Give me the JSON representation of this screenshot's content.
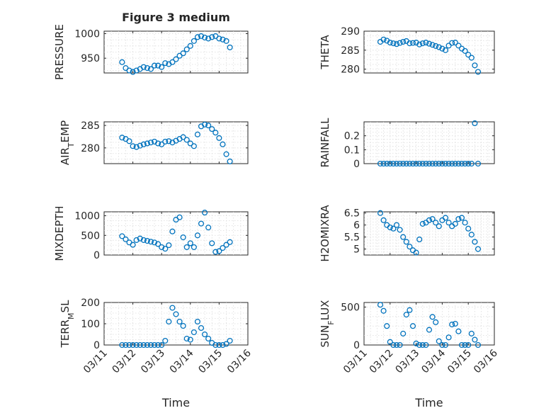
{
  "figure": {
    "title": "Figure 3 medium",
    "xlabel": "Time"
  },
  "chart_data": [
    {
      "type": "scatter",
      "ylabel": "PRESSURE",
      "ylim": [
        920,
        1005
      ],
      "yticks": [
        950,
        1000
      ],
      "ytick_labels": [
        "950",
        "1000"
      ],
      "x": [
        "03/11 15:00",
        "03/11 18:00",
        "03/11 21:00",
        "03/12 00:00",
        "03/12 03:00",
        "03/12 06:00",
        "03/12 09:00",
        "03/12 12:00",
        "03/12 15:00",
        "03/12 18:00",
        "03/12 21:00",
        "03/13 00:00",
        "03/13 03:00",
        "03/13 06:00",
        "03/13 09:00",
        "03/13 12:00",
        "03/13 15:00",
        "03/13 18:00",
        "03/13 21:00",
        "03/14 00:00",
        "03/14 03:00",
        "03/14 06:00",
        "03/14 09:00",
        "03/14 12:00",
        "03/14 15:00",
        "03/14 18:00",
        "03/14 21:00",
        "03/15 00:00",
        "03/15 03:00",
        "03/15 06:00",
        "03/15 09:00"
      ],
      "values": [
        942,
        930,
        925,
        922,
        925,
        928,
        932,
        930,
        928,
        935,
        935,
        932,
        940,
        938,
        942,
        948,
        955,
        960,
        968,
        975,
        985,
        993,
        995,
        992,
        990,
        993,
        995,
        990,
        988,
        985,
        972
      ]
    },
    {
      "type": "scatter",
      "ylabel": "THETA",
      "ylim": [
        279,
        290
      ],
      "yticks": [
        280,
        285,
        290
      ],
      "ytick_labels": [
        "280",
        "285",
        "290"
      ],
      "x": [
        "03/11 15:00",
        "03/11 18:00",
        "03/11 21:00",
        "03/12 00:00",
        "03/12 03:00",
        "03/12 06:00",
        "03/12 09:00",
        "03/12 12:00",
        "03/12 15:00",
        "03/12 18:00",
        "03/12 21:00",
        "03/13 00:00",
        "03/13 03:00",
        "03/13 06:00",
        "03/13 09:00",
        "03/13 12:00",
        "03/13 15:00",
        "03/13 18:00",
        "03/13 21:00",
        "03/14 00:00",
        "03/14 03:00",
        "03/14 06:00",
        "03/14 09:00",
        "03/14 12:00",
        "03/14 15:00",
        "03/14 18:00",
        "03/14 21:00",
        "03/15 00:00",
        "03/15 03:00",
        "03/15 06:00",
        "03/15 09:00"
      ],
      "values": [
        287.2,
        287.8,
        287.5,
        287.0,
        286.8,
        286.6,
        286.9,
        287.2,
        287.4,
        286.8,
        286.9,
        287.0,
        286.5,
        286.8,
        287.0,
        286.7,
        286.4,
        286.1,
        285.8,
        285.4,
        285.0,
        286.2,
        286.9,
        287.0,
        286.2,
        285.4,
        284.8,
        283.8,
        283.0,
        281.0,
        279.3
      ]
    },
    {
      "type": "scatter",
      "ylabel": "AIR_TEMP",
      "ylim": [
        276.5,
        285.8
      ],
      "yticks": [
        280,
        285
      ],
      "ytick_labels": [
        "280",
        "285"
      ],
      "x": [
        "03/11 15:00",
        "03/11 18:00",
        "03/11 21:00",
        "03/12 00:00",
        "03/12 03:00",
        "03/12 06:00",
        "03/12 09:00",
        "03/12 12:00",
        "03/12 15:00",
        "03/12 18:00",
        "03/12 21:00",
        "03/13 00:00",
        "03/13 03:00",
        "03/13 06:00",
        "03/13 09:00",
        "03/13 12:00",
        "03/13 15:00",
        "03/13 18:00",
        "03/13 21:00",
        "03/14 00:00",
        "03/14 03:00",
        "03/14 06:00",
        "03/14 09:00",
        "03/14 12:00",
        "03/14 15:00",
        "03/14 18:00",
        "03/14 21:00",
        "03/15 00:00",
        "03/15 03:00",
        "03/15 06:00",
        "03/15 09:00"
      ],
      "values": [
        282.3,
        282.0,
        281.5,
        280.4,
        280.2,
        280.5,
        280.8,
        281.0,
        281.2,
        281.4,
        281.0,
        280.8,
        281.4,
        281.5,
        281.2,
        281.6,
        282.0,
        282.4,
        281.8,
        281.0,
        280.4,
        283.0,
        284.8,
        285.2,
        285.0,
        284.2,
        283.4,
        282.2,
        280.8,
        278.6,
        277.0
      ]
    },
    {
      "type": "scatter",
      "ylabel": "RAINFALL",
      "ylim": [
        0,
        0.3
      ],
      "yticks": [
        0,
        0.1,
        0.2
      ],
      "ytick_labels": [
        "0",
        "0.1",
        "0.2"
      ],
      "x": [
        "03/11 15:00",
        "03/11 18:00",
        "03/11 21:00",
        "03/12 00:00",
        "03/12 03:00",
        "03/12 06:00",
        "03/12 09:00",
        "03/12 12:00",
        "03/12 15:00",
        "03/12 18:00",
        "03/12 21:00",
        "03/13 00:00",
        "03/13 03:00",
        "03/13 06:00",
        "03/13 09:00",
        "03/13 12:00",
        "03/13 15:00",
        "03/13 18:00",
        "03/13 21:00",
        "03/14 00:00",
        "03/14 03:00",
        "03/14 06:00",
        "03/14 09:00",
        "03/14 12:00",
        "03/14 15:00",
        "03/14 18:00",
        "03/14 21:00",
        "03/15 00:00",
        "03/15 03:00",
        "03/15 06:00",
        "03/15 09:00"
      ],
      "values": [
        0,
        0,
        0,
        0,
        0,
        0,
        0,
        0,
        0,
        0,
        0,
        0,
        0,
        0,
        0,
        0,
        0,
        0,
        0,
        0,
        0,
        0,
        0,
        0,
        0,
        0,
        0,
        0,
        0,
        0.29,
        0
      ]
    },
    {
      "type": "scatter",
      "ylabel": "MIXDEPTH",
      "ylim": [
        0,
        1100
      ],
      "yticks": [
        0,
        500,
        1000
      ],
      "ytick_labels": [
        "0",
        "500",
        "1000"
      ],
      "x": [
        "03/11 15:00",
        "03/11 18:00",
        "03/11 21:00",
        "03/12 00:00",
        "03/12 03:00",
        "03/12 06:00",
        "03/12 09:00",
        "03/12 12:00",
        "03/12 15:00",
        "03/12 18:00",
        "03/12 21:00",
        "03/13 00:00",
        "03/13 03:00",
        "03/13 06:00",
        "03/13 09:00",
        "03/13 12:00",
        "03/13 15:00",
        "03/13 18:00",
        "03/13 21:00",
        "03/14 00:00",
        "03/14 03:00",
        "03/14 06:00",
        "03/14 09:00",
        "03/14 12:00",
        "03/14 15:00",
        "03/14 18:00",
        "03/14 21:00",
        "03/15 00:00",
        "03/15 03:00",
        "03/15 06:00",
        "03/15 09:00"
      ],
      "values": [
        480,
        400,
        320,
        260,
        380,
        420,
        380,
        360,
        340,
        320,
        280,
        200,
        160,
        250,
        600,
        900,
        960,
        450,
        200,
        300,
        200,
        500,
        800,
        1080,
        700,
        300,
        80,
        100,
        180,
        260,
        330
      ]
    },
    {
      "type": "scatter",
      "ylabel": "H2OMIXRA",
      "ylim": [
        4.75,
        6.55
      ],
      "yticks": [
        5,
        5.5,
        6,
        6.5
      ],
      "ytick_labels": [
        "5",
        "5.5",
        "6",
        "6.5"
      ],
      "x": [
        "03/11 15:00",
        "03/11 18:00",
        "03/11 21:00",
        "03/12 00:00",
        "03/12 03:00",
        "03/12 06:00",
        "03/12 09:00",
        "03/12 12:00",
        "03/12 15:00",
        "03/12 18:00",
        "03/12 21:00",
        "03/13 00:00",
        "03/13 03:00",
        "03/13 06:00",
        "03/13 09:00",
        "03/13 12:00",
        "03/13 15:00",
        "03/13 18:00",
        "03/13 21:00",
        "03/14 00:00",
        "03/14 03:00",
        "03/14 06:00",
        "03/14 09:00",
        "03/14 12:00",
        "03/14 15:00",
        "03/14 18:00",
        "03/14 21:00",
        "03/15 00:00",
        "03/15 03:00",
        "03/15 06:00",
        "03/15 09:00"
      ],
      "values": [
        6.5,
        6.2,
        6.0,
        5.9,
        5.85,
        6.0,
        5.8,
        5.5,
        5.3,
        5.1,
        4.95,
        4.85,
        5.4,
        6.05,
        6.1,
        6.2,
        6.25,
        6.1,
        5.95,
        6.2,
        6.3,
        6.1,
        5.95,
        6.05,
        6.25,
        6.3,
        6.1,
        5.85,
        5.6,
        5.3,
        5.0
      ]
    },
    {
      "type": "scatter",
      "ylabel": "TERR_MSL",
      "ylim": [
        0,
        200
      ],
      "yticks": [
        0,
        100,
        200
      ],
      "ytick_labels": [
        "0",
        "100",
        "200"
      ],
      "x": [
        "03/11 15:00",
        "03/11 18:00",
        "03/11 21:00",
        "03/12 00:00",
        "03/12 03:00",
        "03/12 06:00",
        "03/12 09:00",
        "03/12 12:00",
        "03/12 15:00",
        "03/12 18:00",
        "03/12 21:00",
        "03/13 00:00",
        "03/13 03:00",
        "03/13 06:00",
        "03/13 09:00",
        "03/13 12:00",
        "03/13 15:00",
        "03/13 18:00",
        "03/13 21:00",
        "03/14 00:00",
        "03/14 03:00",
        "03/14 06:00",
        "03/14 09:00",
        "03/14 12:00",
        "03/14 15:00",
        "03/14 18:00",
        "03/14 21:00",
        "03/15 00:00",
        "03/15 03:00",
        "03/15 06:00",
        "03/15 09:00"
      ],
      "values": [
        0,
        0,
        0,
        0,
        0,
        0,
        0,
        0,
        0,
        0,
        0,
        0,
        20,
        110,
        175,
        145,
        110,
        90,
        30,
        25,
        60,
        110,
        80,
        50,
        30,
        10,
        0,
        0,
        0,
        5,
        20
      ]
    },
    {
      "type": "scatter",
      "ylabel": "SUN_FLUX",
      "ylim": [
        0,
        560
      ],
      "yticks": [
        0,
        500
      ],
      "ytick_labels": [
        "0",
        "500"
      ],
      "x": [
        "03/11 15:00",
        "03/11 18:00",
        "03/11 21:00",
        "03/12 00:00",
        "03/12 03:00",
        "03/12 06:00",
        "03/12 09:00",
        "03/12 12:00",
        "03/12 15:00",
        "03/12 18:00",
        "03/12 21:00",
        "03/13 00:00",
        "03/13 03:00",
        "03/13 06:00",
        "03/13 09:00",
        "03/13 12:00",
        "03/13 15:00",
        "03/13 18:00",
        "03/13 21:00",
        "03/14 00:00",
        "03/14 03:00",
        "03/14 06:00",
        "03/14 09:00",
        "03/14 12:00",
        "03/14 15:00",
        "03/14 18:00",
        "03/14 21:00",
        "03/15 00:00",
        "03/15 03:00",
        "03/15 06:00",
        "03/15 09:00"
      ],
      "values": [
        530,
        450,
        250,
        40,
        0,
        0,
        0,
        150,
        400,
        460,
        250,
        20,
        0,
        0,
        0,
        200,
        370,
        300,
        50,
        0,
        0,
        100,
        270,
        280,
        180,
        0,
        0,
        0,
        150,
        70,
        0
      ]
    }
  ],
  "x_axis": {
    "xlim": [
      "03/11 00:00",
      "03/16 00:00"
    ],
    "ticks": [
      "03/11",
      "03/12",
      "03/13",
      "03/14",
      "03/15",
      "03/16"
    ]
  }
}
